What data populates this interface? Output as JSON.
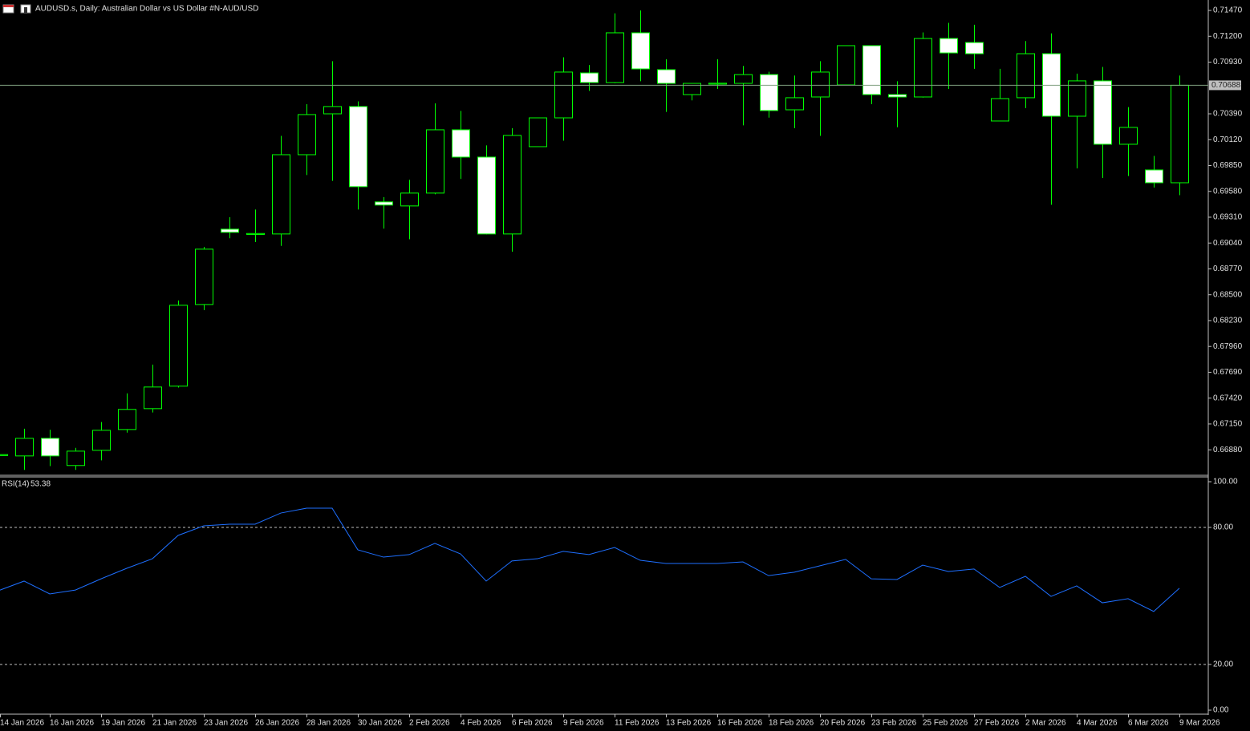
{
  "chart_data": [
    {
      "type": "candlestick",
      "title": "AUDUSD.s, Daily:  Australian Dollar vs US Dollar #N-AUD/USD",
      "categories": [
        "14 Jan 2026",
        null,
        "16 Jan 2026",
        null,
        "19 Jan 2026",
        null,
        "21 Jan 2026",
        null,
        "23 Jan 2026",
        null,
        "26 Jan 2026",
        null,
        "28 Jan 2026",
        null,
        "30 Jan 2026",
        null,
        "2 Feb 2026",
        null,
        "4 Feb 2026",
        null,
        "6 Feb 2026",
        null,
        "9 Feb 2026",
        null,
        "11 Feb 2026",
        null,
        "13 Feb 2026",
        null,
        "16 Feb 2026",
        null,
        "18 Feb 2026",
        null,
        "20 Feb 2026",
        null,
        "23 Feb 2026",
        null,
        "25 Feb 2026",
        null,
        "27 Feb 2026",
        null,
        "2 Mar 2026",
        null,
        "4 Mar 2026",
        null,
        "6 Mar 2026",
        null,
        "9 Mar 2026"
      ],
      "open": [
        0.6682,
        0.66816,
        0.67,
        0.66716,
        0.66875,
        0.67092,
        0.6731,
        0.67545,
        0.68398,
        0.69185,
        0.6913,
        0.69135,
        0.69963,
        0.7039,
        0.70466,
        0.6947,
        0.69428,
        0.69562,
        0.70223,
        0.69938,
        0.69135,
        0.70047,
        0.70348,
        0.70817,
        0.70717,
        0.71236,
        0.70851,
        0.70591,
        0.707,
        0.70708,
        0.708,
        0.70432,
        0.70566,
        0.70692,
        0.71102,
        0.70591,
        0.70566,
        0.71177,
        0.71135,
        0.70315,
        0.70558,
        0.71018,
        0.70365,
        0.70734,
        0.70072,
        0.69804,
        0.6967
      ],
      "high": [
        0.6684,
        0.671,
        0.6709,
        0.669,
        0.6717,
        0.6747,
        0.6777,
        0.6844,
        0.69,
        0.6931,
        0.6939,
        0.7016,
        0.7049,
        0.7094,
        0.7052,
        0.6952,
        0.697,
        0.705,
        0.7042,
        0.7006,
        0.7024,
        0.7035,
        0.7098,
        0.709,
        0.7144,
        0.7147,
        0.7096,
        0.7071,
        0.7096,
        0.7089,
        0.7083,
        0.7079,
        0.7094,
        0.711,
        0.711,
        0.7073,
        0.7124,
        0.7134,
        0.7132,
        0.7086,
        0.7115,
        0.7123,
        0.7081,
        0.7088,
        0.7046,
        0.6995,
        0.7079
      ],
      "low": [
        0.6681,
        0.6667,
        0.6671,
        0.6667,
        0.6677,
        0.6706,
        0.6727,
        0.6753,
        0.6834,
        0.6909,
        0.6905,
        0.6901,
        0.6975,
        0.6969,
        0.6939,
        0.6919,
        0.6908,
        0.6955,
        0.6971,
        0.6913,
        0.6895,
        0.7005,
        0.7011,
        0.7063,
        0.7071,
        0.7073,
        0.7041,
        0.7053,
        0.7065,
        0.7027,
        0.7035,
        0.7024,
        0.7016,
        0.7069,
        0.7049,
        0.7025,
        0.7056,
        0.7065,
        0.7086,
        0.7032,
        0.7045,
        0.6944,
        0.6982,
        0.6972,
        0.6974,
        0.6962,
        0.6954
      ],
      "close": [
        0.6683,
        0.67,
        0.66816,
        0.66866,
        0.67084,
        0.67302,
        0.67536,
        0.6839,
        0.68976,
        0.69152,
        0.6914,
        0.69963,
        0.70382,
        0.70466,
        0.69629,
        0.69437,
        0.69562,
        0.70223,
        0.69938,
        0.69135,
        0.70164,
        0.70348,
        0.70826,
        0.70717,
        0.71236,
        0.70859,
        0.70708,
        0.70708,
        0.7071,
        0.708,
        0.70424,
        0.70558,
        0.70826,
        0.71102,
        0.70591,
        0.70566,
        0.71177,
        0.71026,
        0.71018,
        0.70549,
        0.71018,
        0.70365,
        0.70734,
        0.70072,
        0.70248,
        0.6967,
        0.70688
      ],
      "up_color": "#00ff00",
      "down_color": "#ffffff",
      "ylim": [
        0.66622,
        0.71579
      ],
      "yticks": [
        {
          "value": 0.7147,
          "label": "0.71470"
        },
        {
          "value": 0.712,
          "label": "0.71200"
        },
        {
          "value": 0.7093,
          "label": "0.70930"
        },
        {
          "value": 0.7039,
          "label": "0.70390"
        },
        {
          "value": 0.7012,
          "label": "0.70120"
        },
        {
          "value": 0.6985,
          "label": "0.69850"
        },
        {
          "value": 0.6958,
          "label": "0.69580"
        },
        {
          "value": 0.6931,
          "label": "0.69310"
        },
        {
          "value": 0.6904,
          "label": "0.69040"
        },
        {
          "value": 0.6877,
          "label": "0.68770"
        },
        {
          "value": 0.685,
          "label": "0.68500"
        },
        {
          "value": 0.6823,
          "label": "0.68230"
        },
        {
          "value": 0.6796,
          "label": "0.67960"
        },
        {
          "value": 0.6769,
          "label": "0.67690"
        },
        {
          "value": 0.6742,
          "label": "0.67420"
        },
        {
          "value": 0.6715,
          "label": "0.67150"
        },
        {
          "value": 0.6688,
          "label": "0.66880"
        }
      ],
      "last_price_line": true,
      "last_price_color": "#7f9f7f"
    },
    {
      "type": "line",
      "title": "RSI(14)",
      "values": [
        52.3,
        56.5,
        50.9,
        52.6,
        57.5,
        62.1,
        66.3,
        76.5,
        80.7,
        81.4,
        81.4,
        86.3,
        88.4,
        88.4,
        70.2,
        67.0,
        68.1,
        73.0,
        68.4,
        56.5,
        65.3,
        66.3,
        69.5,
        68.1,
        71.2,
        65.6,
        64.2,
        64.2,
        64.2,
        64.9,
        58.9,
        60.4,
        63.2,
        66.0,
        57.5,
        57.2,
        63.5,
        60.7,
        61.8,
        53.7,
        58.6,
        49.8,
        54.4,
        47.0,
        48.8,
        43.2,
        53.38
      ],
      "color": "#1e6fff",
      "ylim": [
        0,
        100
      ],
      "yticks": [
        {
          "value": 100,
          "label": "100.00"
        },
        {
          "value": 80,
          "label": "80.00"
        },
        {
          "value": 20,
          "label": "20.00"
        },
        {
          "value": 0,
          "label": "0.00"
        }
      ],
      "levels": [
        80,
        20
      ]
    }
  ]
}
